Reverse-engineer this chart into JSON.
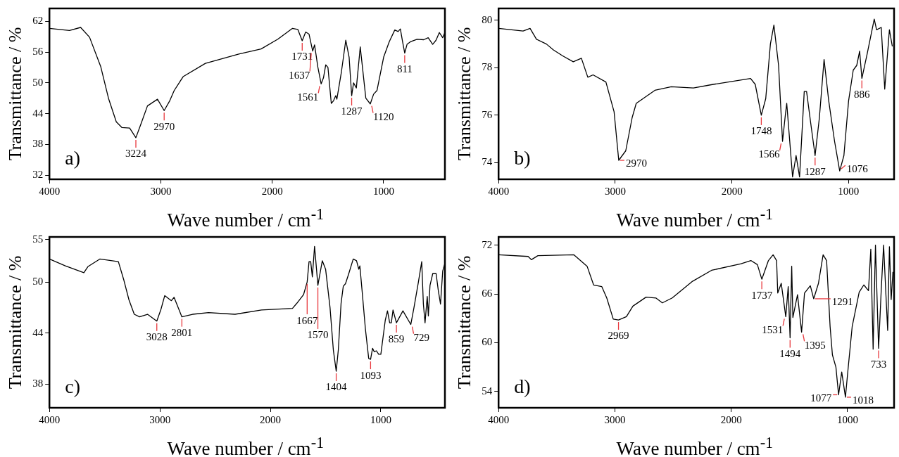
{
  "chart_data": [
    {
      "type": "line",
      "xlabel": "Wave number / cm$^{-1}$",
      "ylabel": "Transmittance / %",
      "xlim": [
        4000,
        450
      ],
      "xticks": [
        4000,
        3000,
        2000,
        1000
      ],
      "ylim": [
        31.2,
        64.5
      ],
      "yticks": [
        32,
        38,
        44,
        50,
        56,
        62
      ],
      "color": "#000000",
      "x": [
        4000,
        3820,
        3720,
        3640,
        3540,
        3470,
        3400,
        3350,
        3280,
        3224,
        3180,
        3120,
        3030,
        2970,
        2920,
        2880,
        2800,
        2600,
        2300,
        2100,
        1950,
        1820,
        1770,
        1731,
        1700,
        1670,
        1637,
        1620,
        1590,
        1561,
        1540,
        1520,
        1500,
        1470,
        1450,
        1430,
        1420,
        1380,
        1340,
        1310,
        1287,
        1270,
        1245,
        1210,
        1190,
        1160,
        1120,
        1090,
        1060,
        1000,
        950,
        900,
        870,
        850,
        830,
        811,
        790,
        760,
        700,
        640,
        600,
        560,
        530,
        500,
        470,
        450
      ],
      "values": [
        60.6,
        60.2,
        60.8,
        58.9,
        53.2,
        47,
        42.4,
        41.3,
        41.2,
        39.3,
        41.9,
        45.5,
        46.8,
        44.6,
        46.5,
        48.5,
        51.2,
        53.8,
        55.6,
        56.6,
        58.5,
        60.6,
        60.4,
        58.2,
        59.9,
        59.5,
        56.2,
        57.4,
        53,
        49.8,
        51,
        53.5,
        53,
        46,
        46.5,
        47.5,
        46.8,
        52,
        58.3,
        55,
        47.5,
        50,
        49,
        57,
        53,
        47,
        45.9,
        47.8,
        48.5,
        55,
        58,
        60.3,
        60,
        60.5,
        58,
        55.8,
        57.5,
        58,
        58.5,
        58.4,
        58.8,
        57.5,
        58.3,
        59.8,
        58.8,
        59.8
      ],
      "annotations": [
        "a)",
        {
          "text": "3224",
          "x": 3224,
          "y": 39.3
        },
        {
          "text": "2970",
          "x": 2970,
          "y": 44.6
        },
        {
          "text": "1731",
          "x": 1731,
          "y": 58.2
        },
        {
          "text": "1637",
          "x": 1637,
          "y": 56.2
        },
        {
          "text": "1561",
          "x": 1561,
          "y": 49.8
        },
        {
          "text": "1287",
          "x": 1287,
          "y": 47.5
        },
        {
          "text": "1120",
          "x": 1120,
          "y": 45.9
        },
        {
          "text": "811",
          "x": 811,
          "y": 55.8
        }
      ]
    },
    {
      "type": "line",
      "xlabel": "Wave number / cm$^{-1}$",
      "ylabel": "Transmittance / %",
      "xlim": [
        4000,
        610
      ],
      "xticks": [
        4000,
        3000,
        2000,
        1000
      ],
      "ylim": [
        73.3,
        80.5
      ],
      "yticks": [
        74,
        76,
        78,
        80
      ],
      "color": "#000000",
      "x": [
        4000,
        3790,
        3730,
        3675,
        3590,
        3530,
        3450,
        3360,
        3290,
        3235,
        3190,
        3080,
        3010,
        2970,
        2910,
        2855,
        2820,
        2660,
        2520,
        2330,
        2160,
        1840,
        1800,
        1748,
        1710,
        1670,
        1640,
        1600,
        1566,
        1540,
        1530,
        1480,
        1450,
        1420,
        1380,
        1360,
        1320,
        1287,
        1250,
        1210,
        1170,
        1120,
        1076,
        1040,
        1000,
        960,
        930,
        905,
        886,
        840,
        780,
        760,
        720,
        690,
        650,
        625
      ],
      "values": [
        79.66,
        79.55,
        79.66,
        79.2,
        79.0,
        78.75,
        78.5,
        78.25,
        78.4,
        77.6,
        77.7,
        77.4,
        76.15,
        74.1,
        74.5,
        75.9,
        76.5,
        77.05,
        77.2,
        77.15,
        77.3,
        77.55,
        77.3,
        76.0,
        76.7,
        79.0,
        79.8,
        78.1,
        74.9,
        76.1,
        76.5,
        73.4,
        74.3,
        73.4,
        77.0,
        77.0,
        75.5,
        74.3,
        75.9,
        78.35,
        76.6,
        74.9,
        73.65,
        74.3,
        76.6,
        77.9,
        78.1,
        78.7,
        77.55,
        78.6,
        80.05,
        79.6,
        79.7,
        77.1,
        79.6,
        78.9
      ],
      "annotations": [
        "b)",
        {
          "text": "2970",
          "x": 2970,
          "y": 74.1
        },
        {
          "text": "1748",
          "x": 1748,
          "y": 76.0
        },
        {
          "text": "1566",
          "x": 1566,
          "y": 74.9
        },
        {
          "text": "1287",
          "x": 1287,
          "y": 74.3
        },
        {
          "text": "1076",
          "x": 1076,
          "y": 73.65
        },
        {
          "text": "886",
          "x": 886,
          "y": 77.55
        }
      ]
    },
    {
      "type": "line",
      "xlabel": "Wave number / cm$^{-1}$",
      "ylabel": "Transmittance / %",
      "xlim": [
        4000,
        420
      ],
      "xticks": [
        4000,
        3000,
        2000,
        1000
      ],
      "ylim": [
        35.2,
        55.3
      ],
      "yticks": [
        38,
        44,
        50,
        55
      ],
      "color": "#000000",
      "x": [
        4000,
        3856,
        3688,
        3652,
        3544,
        3376,
        3328,
        3280,
        3232,
        3184,
        3112,
        3028,
        2990,
        2956,
        2896,
        2872,
        2801,
        2704,
        2560,
        2320,
        2080,
        1800,
        1760,
        1700,
        1667,
        1650,
        1635,
        1620,
        1600,
        1570,
        1530,
        1500,
        1460,
        1430,
        1404,
        1385,
        1360,
        1340,
        1320,
        1290,
        1250,
        1220,
        1200,
        1190,
        1170,
        1140,
        1110,
        1093,
        1075,
        1060,
        1040,
        1020,
        1000,
        985,
        960,
        940,
        920,
        905,
        890,
        859,
        800,
        729,
        700,
        660,
        630,
        615,
        600,
        580,
        570,
        555,
        530,
        500,
        480,
        460,
        440,
        420
      ],
      "values": [
        52.7,
        51.9,
        51.1,
        51.8,
        52.7,
        52.4,
        50.3,
        47.9,
        46.2,
        45.9,
        46.2,
        45.4,
        46.8,
        48.4,
        47.8,
        48.2,
        45.9,
        46.2,
        46.4,
        46.2,
        46.7,
        46.9,
        47.5,
        48.5,
        50.0,
        52.4,
        52.4,
        50.6,
        54.2,
        49.6,
        52.5,
        51.5,
        47,
        42,
        39.5,
        42,
        47.5,
        49.5,
        49.8,
        51,
        52.7,
        52.5,
        51.5,
        51.9,
        49,
        44.5,
        41,
        40.9,
        42.2,
        41.8,
        41.9,
        41.5,
        41.5,
        43,
        45.5,
        46.6,
        45.2,
        45.2,
        46.7,
        45.2,
        46.6,
        45.0,
        47,
        50,
        52.4,
        47.4,
        45.2,
        48.3,
        46,
        49.6,
        51,
        51,
        49,
        47.4,
        51.3,
        52.2
      ],
      "annotations": [
        "c)",
        {
          "text": "3028",
          "x": 3028,
          "y": 45.4
        },
        {
          "text": "2801",
          "x": 2801,
          "y": 45.9
        },
        {
          "text": "1667",
          "x": 1667,
          "y": 50.0
        },
        {
          "text": "1570",
          "x": 1570,
          "y": 49.6
        },
        {
          "text": "1404",
          "x": 1404,
          "y": 39.5
        },
        {
          "text": "1093",
          "x": 1093,
          "y": 40.9
        },
        {
          "text": "859",
          "x": 859,
          "y": 45.2
        },
        {
          "text": "729",
          "x": 729,
          "y": 45.0
        }
      ]
    },
    {
      "type": "line",
      "xlabel": "Wave number / cm$^{-1}$",
      "ylabel": "Transmittance / %",
      "xlim": [
        4000,
        600
      ],
      "xticks": [
        4000,
        3000,
        2000,
        1000
      ],
      "ylim": [
        52,
        73
      ],
      "yticks": [
        54,
        60,
        66,
        72
      ],
      "color": "#000000",
      "x": [
        4000,
        3746,
        3718,
        3662,
        3352,
        3239,
        3183,
        3113,
        3070,
        3014,
        2969,
        2901,
        2845,
        2732,
        2648,
        2592,
        2507,
        2338,
        2169,
        1915,
        1831,
        1775,
        1737,
        1680,
        1640,
        1610,
        1600,
        1570,
        1531,
        1510,
        1494,
        1480,
        1470,
        1430,
        1395,
        1370,
        1320,
        1291,
        1250,
        1210,
        1180,
        1150,
        1130,
        1100,
        1077,
        1050,
        1018,
        1000,
        960,
        900,
        860,
        820,
        800,
        780,
        760,
        733,
        710,
        690,
        670,
        655,
        640,
        625,
        610
      ],
      "values": [
        70.8,
        70.6,
        70.2,
        70.7,
        70.8,
        69.4,
        67.1,
        66.9,
        65.5,
        62.9,
        62.8,
        63.2,
        64.5,
        65.6,
        65.5,
        64.9,
        65.5,
        67.5,
        68.9,
        69.7,
        70.1,
        69.6,
        67.8,
        70.1,
        70.8,
        70.1,
        66.1,
        67.3,
        63.2,
        66.9,
        60.6,
        69.4,
        63.1,
        65.9,
        61.3,
        66.1,
        67,
        65.4,
        67.3,
        70.8,
        70.1,
        62,
        58.5,
        57,
        53.6,
        56.4,
        53.3,
        56.1,
        62,
        66.2,
        67.1,
        66.4,
        71.5,
        59.2,
        72,
        59.3,
        66.6,
        72,
        65.9,
        61.5,
        71.8,
        65.3,
        68.7
      ],
      "annotations": [
        "d)",
        {
          "text": "2969",
          "x": 2969,
          "y": 62.8
        },
        {
          "text": "1737",
          "x": 1737,
          "y": 67.8
        },
        {
          "text": "1531",
          "x": 1531,
          "y": 63.2
        },
        {
          "text": "1494",
          "x": 1494,
          "y": 60.6
        },
        {
          "text": "1395",
          "x": 1395,
          "y": 61.3
        },
        {
          "text": "1291",
          "x": 1291,
          "y": 65.4
        },
        {
          "text": "1077",
          "x": 1077,
          "y": 53.6
        },
        {
          "text": "1018",
          "x": 1018,
          "y": 53.3
        },
        {
          "text": "733",
          "x": 733,
          "y": 59.3
        }
      ]
    }
  ]
}
